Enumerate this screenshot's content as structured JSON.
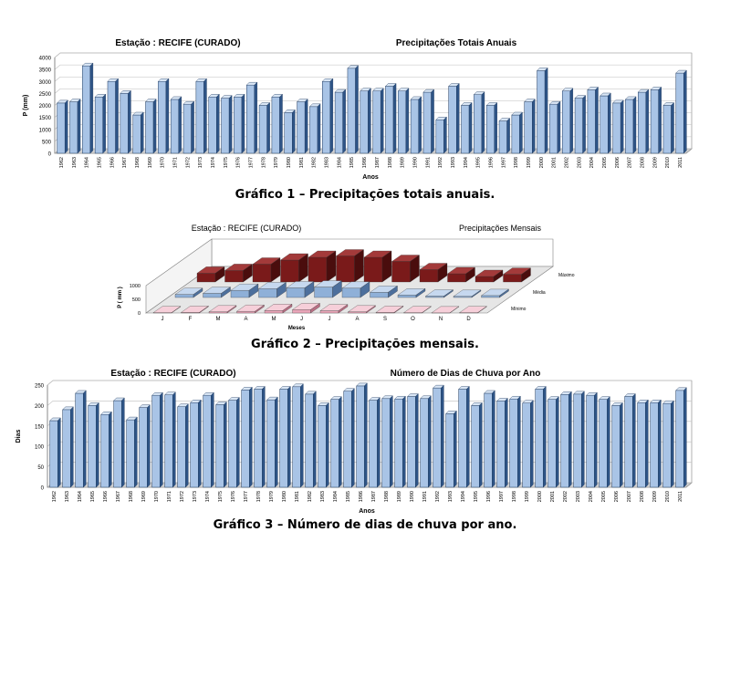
{
  "figures": [
    {
      "caption": "Gráfico 1 – Precipitações totais anuais."
    },
    {
      "caption": "Gráfico 2 – Precipitações mensais."
    },
    {
      "caption": "Gráfico 3 – Número de dias de chuva por ano."
    }
  ],
  "colors": {
    "bar_face": "#a9c4e6",
    "bar_top": "#d9e6f5",
    "bar_side": "#2e5486",
    "max": "#7a1a1a",
    "mean": "#8fb0d8",
    "min": "#e9a5b8",
    "grid": "#bfbfbf"
  },
  "chart_data": [
    {
      "type": "bar",
      "title": "Estação : RECIFE (CURADO)",
      "subtitle": "Precipitações Totais Anuais",
      "xlabel": "Anos",
      "ylabel": "P (mm)",
      "ylim": [
        0,
        4000
      ],
      "yticks": [
        0,
        500,
        1000,
        1500,
        2000,
        2500,
        3000,
        3500,
        4000
      ],
      "grid": true,
      "categories": [
        "1962",
        "1963",
        "1964",
        "1965",
        "1966",
        "1967",
        "1968",
        "1969",
        "1970",
        "1971",
        "1972",
        "1973",
        "1974",
        "1975",
        "1976",
        "1977",
        "1978",
        "1979",
        "1980",
        "1981",
        "1982",
        "1983",
        "1984",
        "1985",
        "1986",
        "1987",
        "1988",
        "1989",
        "1990",
        "1991",
        "1992",
        "1993",
        "1994",
        "1995",
        "1996",
        "1997",
        "1998",
        "1999",
        "2000",
        "2001",
        "2002",
        "2003",
        "2004",
        "2005",
        "2006",
        "2007",
        "2008",
        "2009",
        "2010",
        "2011"
      ],
      "values": [
        2100,
        2150,
        3650,
        2350,
        3000,
        2500,
        1600,
        2150,
        3000,
        2250,
        2050,
        3000,
        2350,
        2300,
        2350,
        2850,
        2000,
        2350,
        1700,
        2150,
        1950,
        3000,
        2550,
        3550,
        2600,
        2600,
        2800,
        2600,
        2250,
        2550,
        1400,
        2800,
        2000,
        2450,
        2000,
        1350,
        1600,
        2150,
        3450,
        2050,
        2600,
        2300,
        2650,
        2400,
        2100,
        2250,
        2550,
        2650,
        2000,
        3350
      ]
    },
    {
      "type": "bar",
      "title": "Estação : RECIFE (CURADO)",
      "subtitle": "Precipitações Mensais",
      "xlabel": "Meses",
      "ylabel": "P ( mm )",
      "ylim": [
        0,
        1000
      ],
      "yticks": [
        0,
        500,
        1000
      ],
      "categories": [
        "J",
        "F",
        "M",
        "A",
        "M",
        "J",
        "J",
        "A",
        "S",
        "O",
        "N",
        "D"
      ],
      "series": [
        {
          "name": "Mínimo",
          "values": [
            10,
            20,
            40,
            60,
            90,
            120,
            80,
            40,
            20,
            10,
            5,
            10
          ]
        },
        {
          "name": "Média",
          "values": [
            110,
            150,
            260,
            320,
            350,
            380,
            340,
            190,
            90,
            50,
            40,
            70
          ]
        },
        {
          "name": "Máximo",
          "values": [
            320,
            420,
            650,
            800,
            900,
            950,
            900,
            750,
            450,
            300,
            200,
            280
          ]
        }
      ]
    },
    {
      "type": "bar",
      "title": "Estação : RECIFE (CURADO)",
      "subtitle": "Número de Dias de Chuva por Ano",
      "xlabel": "Anos",
      "ylabel": "Dias",
      "ylim": [
        0,
        250
      ],
      "yticks": [
        0,
        50,
        100,
        150,
        200,
        250
      ],
      "grid": true,
      "categories": [
        "1962",
        "1963",
        "1964",
        "1965",
        "1966",
        "1967",
        "1968",
        "1969",
        "1970",
        "1971",
        "1972",
        "1973",
        "1974",
        "1975",
        "1976",
        "1977",
        "1978",
        "1979",
        "1980",
        "1981",
        "1982",
        "1983",
        "1984",
        "1985",
        "1986",
        "1987",
        "1988",
        "1989",
        "1990",
        "1991",
        "1992",
        "1993",
        "1994",
        "1995",
        "1996",
        "1997",
        "1998",
        "1999",
        "2000",
        "2001",
        "2002",
        "2003",
        "2004",
        "2005",
        "2006",
        "2007",
        "2008",
        "2009",
        "2010",
        "2011"
      ],
      "values": [
        163,
        190,
        230,
        200,
        178,
        212,
        165,
        195,
        225,
        226,
        197,
        207,
        225,
        202,
        213,
        238,
        240,
        214,
        240,
        246,
        228,
        200,
        215,
        235,
        248,
        213,
        217,
        216,
        222,
        217,
        243,
        180,
        240,
        200,
        230,
        211,
        216,
        206,
        240,
        215,
        227,
        228,
        225,
        215,
        200,
        222,
        207,
        207,
        205,
        237
      ]
    }
  ]
}
